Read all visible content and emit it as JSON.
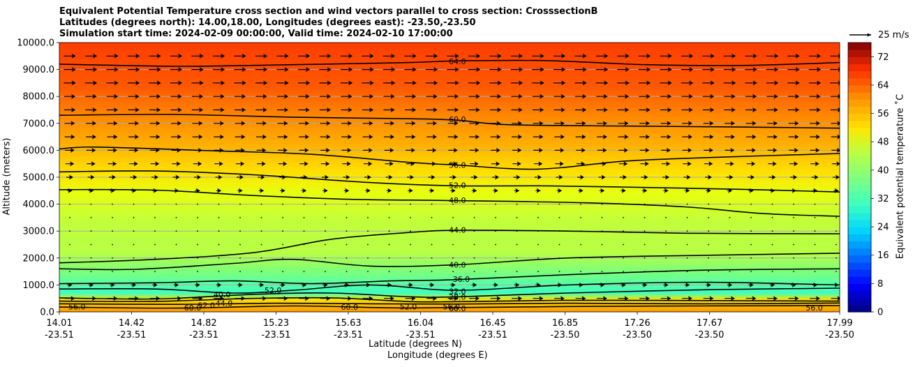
{
  "titles": {
    "line1": "Equivalent Potential Temperature cross section and wind vectors parallel to cross section: CrosssectionB",
    "line2": "Latitudes (degrees north): 14.00,18.00, Longitudes (degrees east): -23.50,-23.50",
    "line3": "Simulation start time: 2024-02-09 00:00:00, Valid time: 2024-02-10 17:00:00"
  },
  "chart_data": {
    "type": "filled-contour cross section with wind vectors",
    "ylabel": "Altitude (meters)",
    "xlabel": "Latitude (degrees N)",
    "xlabel2": "Longitude (degrees E)",
    "ylim": [
      0,
      10000
    ],
    "yticks": [
      "0.0",
      "1000.0",
      "2000.0",
      "3000.0",
      "4000.0",
      "5000.0",
      "6000.0",
      "7000.0",
      "8000.0",
      "9000.0",
      "10000.0"
    ],
    "xticks": [
      {
        "lat": "14.01",
        "lon": "-23.51"
      },
      {
        "lat": "14.42",
        "lon": "-23.51"
      },
      {
        "lat": "14.82",
        "lon": "-23.51"
      },
      {
        "lat": "15.23",
        "lon": "-23.51"
      },
      {
        "lat": "15.63",
        "lon": "-23.51"
      },
      {
        "lat": "16.04",
        "lon": "-23.51"
      },
      {
        "lat": "16.45",
        "lon": "-23.51"
      },
      {
        "lat": "16.85",
        "lon": "-23.50"
      },
      {
        "lat": "17.26",
        "lon": "-23.50"
      },
      {
        "lat": "17.67",
        "lon": "-23.50"
      },
      {
        "lat": "17.99",
        "lon": "-23.50"
      }
    ],
    "colorbar": {
      "label": "Equivalent potential temperature ˚C",
      "min": 0,
      "max": 76,
      "ticks": [
        "0",
        "8",
        "16",
        "24",
        "32",
        "40",
        "48",
        "56",
        "64",
        "72"
      ]
    },
    "reference_vector": "25 m/s",
    "contour_labels": [
      {
        "text": "64.0",
        "lat": 16.04,
        "alt": 9300
      },
      {
        "text": "60.0",
        "lat": 16.04,
        "alt": 7150
      },
      {
        "text": "56.0",
        "lat": 16.04,
        "alt": 5450
      },
      {
        "text": "52.0",
        "lat": 16.04,
        "alt": 4700
      },
      {
        "text": "48.0",
        "lat": 16.04,
        "alt": 4150
      },
      {
        "text": "44.0",
        "lat": 16.04,
        "alt": 3050
      },
      {
        "text": "40.0",
        "lat": 16.04,
        "alt": 1750
      },
      {
        "text": "36.0",
        "lat": 16.06,
        "alt": 1220
      },
      {
        "text": "32.0",
        "lat": 16.04,
        "alt": 770
      },
      {
        "text": "28.0",
        "lat": 16.04,
        "alt": 560
      },
      {
        "text": "56.0",
        "lat": 16.01,
        "alt": 200
      },
      {
        "text": "52.0",
        "lat": 15.79,
        "alt": 200
      },
      {
        "text": "60.0",
        "lat": 15.49,
        "alt": 180
      },
      {
        "text": "60.0",
        "lat": 16.04,
        "alt": 130
      },
      {
        "text": "40.0",
        "lat": 14.84,
        "alt": 650
      },
      {
        "text": "44.0",
        "lat": 14.85,
        "alt": 330
      },
      {
        "text": "52.0",
        "lat": 14.76,
        "alt": 250
      },
      {
        "text": "60.0",
        "lat": 14.69,
        "alt": 160
      },
      {
        "text": "56.0",
        "lat": 14.1,
        "alt": 200
      },
      {
        "text": "52.0",
        "lat": 15.1,
        "alt": 800
      },
      {
        "text": "56.0",
        "lat": 17.86,
        "alt": 150
      }
    ],
    "contour_lines": [
      {
        "level": 64,
        "points": [
          [
            14.01,
            9200
          ],
          [
            14.6,
            9120
          ],
          [
            15.2,
            9180
          ],
          [
            15.8,
            9260
          ],
          [
            16.04,
            9320
          ],
          [
            16.5,
            9330
          ],
          [
            17.0,
            9180
          ],
          [
            17.5,
            9150
          ],
          [
            17.99,
            9260
          ]
        ]
      },
      {
        "level": 60,
        "points": [
          [
            14.01,
            7300
          ],
          [
            14.6,
            7330
          ],
          [
            15.2,
            7230
          ],
          [
            15.8,
            7170
          ],
          [
            16.04,
            7120
          ],
          [
            16.3,
            6950
          ],
          [
            16.9,
            6900
          ],
          [
            17.4,
            6870
          ],
          [
            17.99,
            6820
          ]
        ]
      },
      {
        "level": 56,
        "points": [
          [
            14.01,
            6050
          ],
          [
            14.2,
            6120
          ],
          [
            14.8,
            5980
          ],
          [
            15.3,
            5850
          ],
          [
            15.8,
            5550
          ],
          [
            16.04,
            5450
          ],
          [
            16.45,
            5300
          ],
          [
            16.9,
            5600
          ],
          [
            17.4,
            5750
          ],
          [
            17.99,
            5880
          ]
        ]
      },
      {
        "level": 52,
        "points": [
          [
            14.01,
            5200
          ],
          [
            14.5,
            5230
          ],
          [
            15.0,
            5090
          ],
          [
            15.6,
            4800
          ],
          [
            16.04,
            4680
          ],
          [
            16.5,
            4680
          ],
          [
            17.0,
            4620
          ],
          [
            17.5,
            4550
          ],
          [
            17.99,
            4450
          ]
        ]
      },
      {
        "level": 48,
        "points": [
          [
            14.01,
            4540
          ],
          [
            14.5,
            4520
          ],
          [
            15.0,
            4320
          ],
          [
            15.5,
            4180
          ],
          [
            16.04,
            4130
          ],
          [
            16.7,
            4050
          ],
          [
            17.2,
            3900
          ],
          [
            17.6,
            3650
          ],
          [
            17.99,
            3550
          ]
        ]
      },
      {
        "level": 44,
        "points": [
          [
            14.01,
            1820
          ],
          [
            14.5,
            1950
          ],
          [
            15.0,
            2200
          ],
          [
            15.4,
            2700
          ],
          [
            15.8,
            2950
          ],
          [
            16.04,
            3030
          ],
          [
            16.6,
            3000
          ],
          [
            17.2,
            2920
          ],
          [
            17.99,
            2900
          ]
        ]
      },
      {
        "level": 40,
        "points": [
          [
            14.01,
            1600
          ],
          [
            14.4,
            1580
          ],
          [
            14.9,
            1800
          ],
          [
            15.2,
            1950
          ],
          [
            15.6,
            1700
          ],
          [
            16.04,
            1750
          ],
          [
            16.6,
            2000
          ],
          [
            17.3,
            2100
          ],
          [
            17.99,
            2180
          ]
        ]
      },
      {
        "level": 36,
        "points": [
          [
            14.01,
            1050
          ],
          [
            14.5,
            1080
          ],
          [
            14.9,
            1150
          ],
          [
            15.3,
            1050
          ],
          [
            15.7,
            1150
          ],
          [
            16.04,
            1200
          ],
          [
            16.6,
            1380
          ],
          [
            17.3,
            1550
          ],
          [
            17.99,
            1600
          ]
        ]
      },
      {
        "level": 32,
        "points": [
          [
            14.01,
            850
          ],
          [
            14.5,
            850
          ],
          [
            14.9,
            700
          ],
          [
            15.2,
            800
          ],
          [
            15.6,
            1000
          ],
          [
            16.04,
            800
          ],
          [
            16.6,
            1000
          ],
          [
            17.3,
            1100
          ],
          [
            17.99,
            1000
          ]
        ]
      },
      {
        "level": 28,
        "points": [
          [
            14.01,
            520
          ],
          [
            14.5,
            480
          ],
          [
            15.0,
            650
          ],
          [
            15.4,
            700
          ],
          [
            15.8,
            560
          ],
          [
            16.04,
            560
          ],
          [
            16.6,
            700
          ],
          [
            17.3,
            820
          ],
          [
            17.99,
            880
          ]
        ]
      },
      {
        "level": 52,
        "points": [
          [
            14.01,
            400
          ],
          [
            14.5,
            390
          ],
          [
            15.0,
            500
          ],
          [
            15.4,
            520
          ],
          [
            15.8,
            380
          ],
          [
            16.04,
            380
          ],
          [
            16.6,
            430
          ],
          [
            17.3,
            420
          ],
          [
            17.99,
            400
          ]
        ]
      },
      {
        "level": 56,
        "points": [
          [
            14.01,
            300
          ],
          [
            14.6,
            280
          ],
          [
            15.1,
            320
          ],
          [
            15.6,
            300
          ],
          [
            16.04,
            290
          ],
          [
            16.6,
            320
          ],
          [
            17.3,
            300
          ],
          [
            17.99,
            330
          ]
        ]
      },
      {
        "level": 60,
        "points": [
          [
            14.01,
            180
          ],
          [
            14.6,
            140
          ],
          [
            15.2,
            220
          ],
          [
            15.7,
            150
          ],
          [
            16.04,
            160
          ],
          [
            16.6,
            200
          ],
          [
            17.3,
            220
          ],
          [
            17.99,
            230
          ]
        ]
      }
    ],
    "wind_grid": {
      "lat_count": 37,
      "altitudes": [
        9500,
        9000,
        8500,
        8000,
        7500,
        7000,
        6500,
        6000,
        5500,
        5000,
        4500,
        4000,
        3500,
        3000,
        2500,
        2000,
        1500,
        1000,
        500
      ],
      "speeds_ms": [
        14,
        14,
        14,
        13,
        13,
        12,
        12,
        11,
        10,
        8,
        6,
        3,
        1,
        1,
        1,
        1,
        3,
        6,
        12
      ]
    }
  }
}
